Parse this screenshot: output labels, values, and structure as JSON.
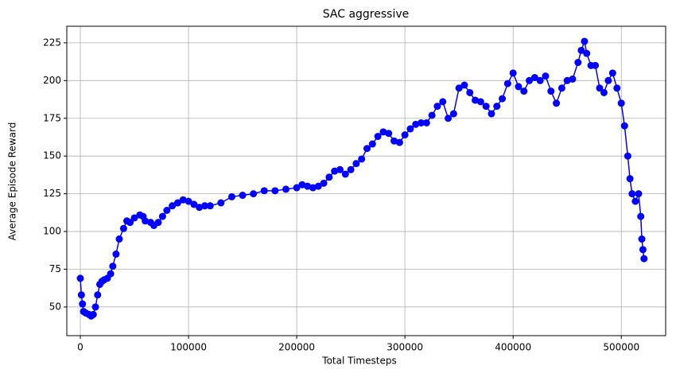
{
  "chart_data": {
    "type": "line",
    "title": "SAC aggressive",
    "x_label": "Total Timesteps",
    "y_label": "Average Episode Reward",
    "series": [
      {
        "name": "Average Episode Reward",
        "color": "#0000ff",
        "x": [
          0,
          1000,
          2000,
          3000,
          5000,
          8000,
          10000,
          12000,
          14000,
          16000,
          18000,
          20000,
          22000,
          25000,
          28000,
          30000,
          33000,
          36000,
          40000,
          43000,
          46000,
          50000,
          55000,
          58000,
          60000,
          65000,
          68000,
          72000,
          76000,
          80000,
          85000,
          90000,
          95000,
          100000,
          105000,
          110000,
          115000,
          120000,
          130000,
          140000,
          150000,
          160000,
          170000,
          180000,
          190000,
          200000,
          205000,
          210000,
          215000,
          220000,
          225000,
          230000,
          235000,
          240000,
          245000,
          250000,
          255000,
          260000,
          265000,
          270000,
          275000,
          280000,
          285000,
          290000,
          295000,
          300000,
          305000,
          310000,
          315000,
          320000,
          325000,
          330000,
          335000,
          340000,
          345000,
          350000,
          355000,
          360000,
          365000,
          370000,
          375000,
          380000,
          385000,
          390000,
          395000,
          400000,
          405000,
          410000,
          415000,
          420000,
          425000,
          430000,
          435000,
          440000,
          445000,
          450000,
          455000,
          460000,
          463000,
          466000,
          468000,
          472000,
          476000,
          480000,
          484000,
          488000,
          492000,
          496000,
          500000,
          503000,
          506000,
          508000,
          510000,
          513000,
          516000,
          518000,
          519000,
          520000,
          521000
        ],
        "values": [
          69,
          58,
          52,
          47,
          46,
          45,
          44,
          45,
          50,
          58,
          65,
          67,
          68,
          69,
          72,
          77,
          85,
          95,
          102,
          107,
          106,
          109,
          111,
          110,
          107,
          106,
          104,
          106,
          110,
          114,
          117,
          119,
          121,
          120,
          118,
          116,
          117,
          117,
          119,
          123,
          124,
          125,
          127,
          127,
          128,
          129,
          131,
          130,
          129,
          130,
          132,
          136,
          140,
          141,
          138,
          141,
          145,
          148,
          155,
          158,
          163,
          166,
          165,
          160,
          159,
          164,
          168,
          171,
          172,
          172,
          177,
          183,
          186,
          175,
          178,
          195,
          197,
          192,
          187,
          186,
          183,
          178,
          183,
          188,
          198,
          205,
          196,
          193,
          200,
          202,
          200,
          203,
          193,
          185,
          195,
          200,
          201,
          212,
          220,
          226,
          218,
          210,
          210,
          195,
          192,
          200,
          205,
          195,
          185,
          170,
          150,
          135,
          125,
          120,
          125,
          110,
          95,
          88,
          82
        ]
      }
    ],
    "xlim": [
      -12500,
      541000
    ],
    "ylim": [
      31,
      236
    ],
    "xticks": [
      0,
      100000,
      200000,
      300000,
      400000,
      500000
    ],
    "yticks": [
      50,
      75,
      100,
      125,
      150,
      175,
      200,
      225
    ],
    "grid": true
  }
}
